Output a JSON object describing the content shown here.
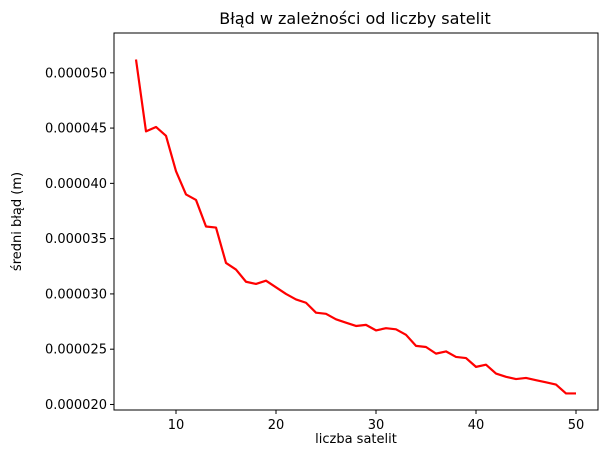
{
  "chart_data": {
    "type": "line",
    "title": "Błąd w zależności od liczby satelit",
    "xlabel": "liczba satelit",
    "ylabel": "średni błąd (m)",
    "xlim": [
      3.8,
      52.2
    ],
    "ylim": [
      1.95e-05,
      5.36e-05
    ],
    "grid": false,
    "xticks": [
      10,
      20,
      30,
      40,
      50
    ],
    "xtick_labels": [
      "10",
      "20",
      "30",
      "40",
      "50"
    ],
    "yticks": [
      2e-05,
      2.5e-05,
      3e-05,
      3.5e-05,
      4e-05,
      4.5e-05,
      5e-05
    ],
    "ytick_labels": [
      "0.000020",
      "0.000025",
      "0.000030",
      "0.000035",
      "0.000040",
      "0.000045",
      "0.000050"
    ],
    "series": [
      {
        "color": "#ff0000",
        "x": [
          6,
          7,
          8,
          9,
          10,
          11,
          12,
          13,
          14,
          15,
          16,
          17,
          18,
          19,
          20,
          21,
          22,
          23,
          24,
          25,
          26,
          27,
          28,
          29,
          30,
          31,
          32,
          33,
          34,
          35,
          36,
          37,
          38,
          39,
          40,
          41,
          42,
          43,
          44,
          45,
          46,
          47,
          48,
          49,
          50
        ],
        "y": [
          5.12e-05,
          4.47e-05,
          4.51e-05,
          4.43e-05,
          4.11e-05,
          3.9e-05,
          3.85e-05,
          3.61e-05,
          3.6e-05,
          3.28e-05,
          3.22e-05,
          3.11e-05,
          3.09e-05,
          3.12e-05,
          3.06e-05,
          3e-05,
          2.95e-05,
          2.92e-05,
          2.83e-05,
          2.82e-05,
          2.77e-05,
          2.74e-05,
          2.71e-05,
          2.72e-05,
          2.67e-05,
          2.69e-05,
          2.68e-05,
          2.63e-05,
          2.53e-05,
          2.52e-05,
          2.46e-05,
          2.48e-05,
          2.43e-05,
          2.42e-05,
          2.34e-05,
          2.36e-05,
          2.28e-05,
          2.25e-05,
          2.23e-05,
          2.24e-05,
          2.22e-05,
          2.2e-05,
          2.18e-05,
          2.1e-05,
          2.1e-05
        ]
      }
    ]
  }
}
